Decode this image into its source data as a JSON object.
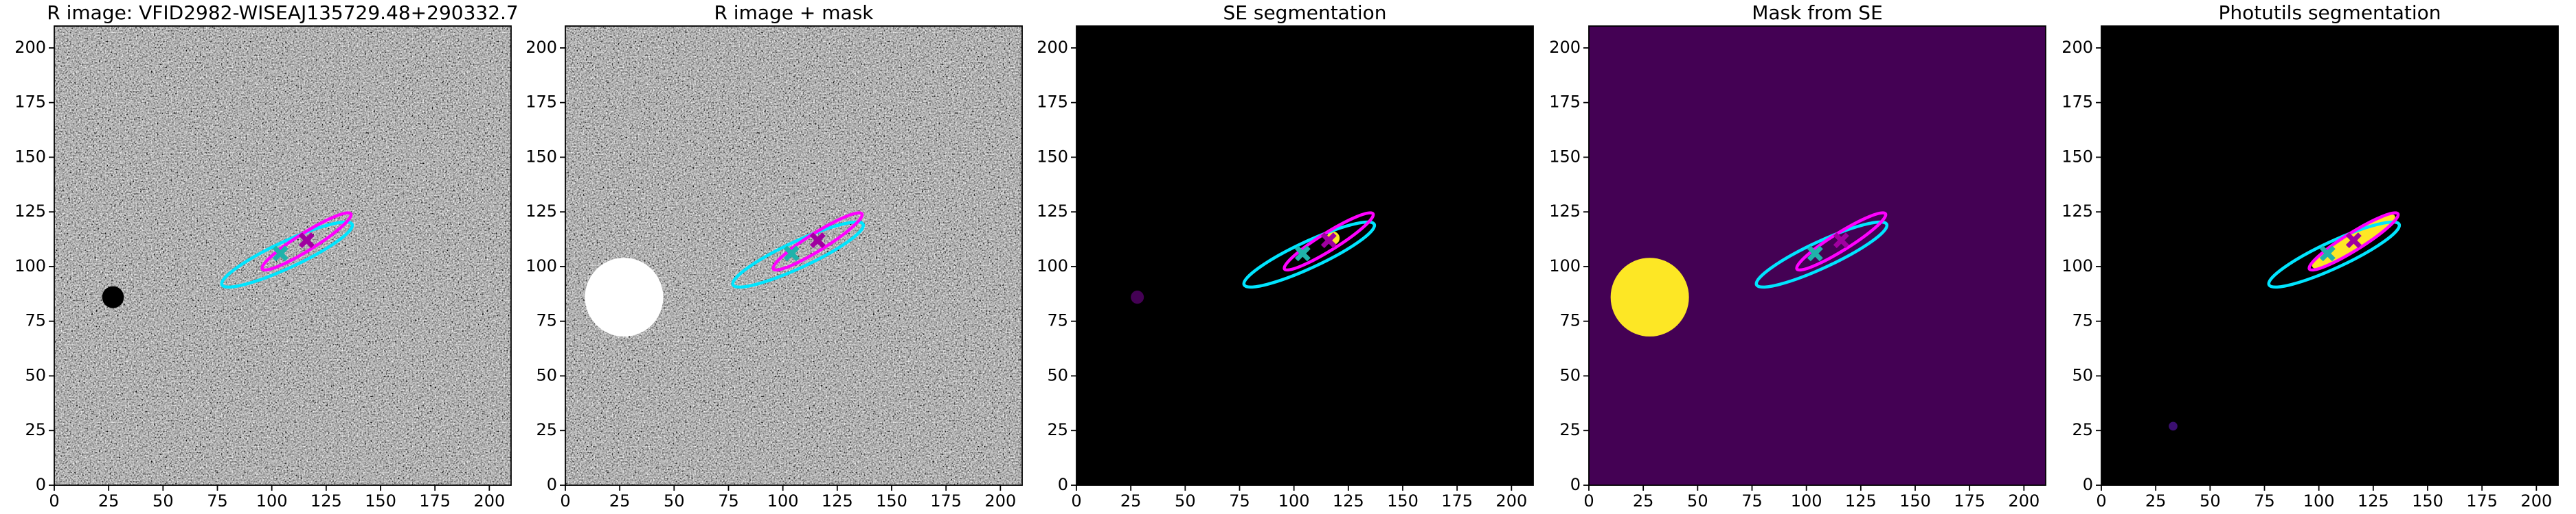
{
  "chart_data": [
    {
      "type": "image",
      "title": "R image: VFID2982-WISEAJ135729.48+290332.7",
      "background": "noise",
      "xlim": [
        0,
        210
      ],
      "ylim": [
        0,
        210
      ],
      "xticks": [
        0,
        25,
        50,
        75,
        100,
        125,
        150,
        175,
        200
      ],
      "yticks": [
        0,
        25,
        50,
        75,
        100,
        125,
        150,
        175,
        200
      ],
      "blobs": [
        {
          "color": "#000000",
          "x": 27,
          "y": 86,
          "r": 5
        }
      ],
      "ellipses": [
        {
          "color": "#00e5ff",
          "x": 107,
          "y": 105.5,
          "a": 33,
          "b": 6,
          "angle": 25
        },
        {
          "color": "#ff00ff",
          "x": 116,
          "y": 111.5,
          "a": 24,
          "b": 4,
          "angle": 32
        }
      ],
      "markers": [
        {
          "color": "#20b2aa",
          "x": 104,
          "y": 106
        },
        {
          "color": "#a000a0",
          "x": 116,
          "y": 112
        }
      ]
    },
    {
      "type": "image",
      "title": "R image + mask",
      "background": "noise",
      "xlim": [
        0,
        210
      ],
      "ylim": [
        0,
        210
      ],
      "xticks": [
        0,
        25,
        50,
        75,
        100,
        125,
        150,
        175,
        200
      ],
      "yticks": [
        0,
        25,
        50,
        75,
        100,
        125,
        150,
        175,
        200
      ],
      "blobs": [
        {
          "color": "#ffffff",
          "x": 27,
          "y": 86,
          "r": 18
        }
      ],
      "ellipses": [
        {
          "color": "#00e5ff",
          "x": 107,
          "y": 105.5,
          "a": 33,
          "b": 6,
          "angle": 25
        },
        {
          "color": "#ff00ff",
          "x": 116,
          "y": 111.5,
          "a": 24,
          "b": 4,
          "angle": 32
        }
      ],
      "markers": [
        {
          "color": "#20b2aa",
          "x": 104,
          "y": 106
        },
        {
          "color": "#a000a0",
          "x": 116,
          "y": 112
        }
      ]
    },
    {
      "type": "image",
      "title": "SE segmentation",
      "background": "#000000",
      "xlim": [
        0,
        210
      ],
      "ylim": [
        0,
        210
      ],
      "xticks": [
        0,
        25,
        50,
        75,
        100,
        125,
        150,
        175,
        200
      ],
      "yticks": [
        0,
        25,
        50,
        75,
        100,
        125,
        150,
        175,
        200
      ],
      "blobs": [
        {
          "color": "#440154",
          "x": 28,
          "y": 86,
          "r": 3
        },
        {
          "color": "#fde725",
          "x": 118,
          "y": 113,
          "r": 3
        }
      ],
      "ellipses": [
        {
          "color": "#00e5ff",
          "x": 107,
          "y": 105.5,
          "a": 33,
          "b": 6,
          "angle": 25
        },
        {
          "color": "#ff00ff",
          "x": 116,
          "y": 111.5,
          "a": 24,
          "b": 4,
          "angle": 32
        }
      ],
      "markers": [
        {
          "color": "#20b2aa",
          "x": 104,
          "y": 106
        },
        {
          "color": "#a000a0",
          "x": 116,
          "y": 112
        }
      ]
    },
    {
      "type": "image",
      "title": "Mask from SE",
      "background": "#440154",
      "xlim": [
        0,
        210
      ],
      "ylim": [
        0,
        210
      ],
      "xticks": [
        0,
        25,
        50,
        75,
        100,
        125,
        150,
        175,
        200
      ],
      "yticks": [
        0,
        25,
        50,
        75,
        100,
        125,
        150,
        175,
        200
      ],
      "blobs": [
        {
          "color": "#fde725",
          "x": 28,
          "y": 86,
          "r": 18
        }
      ],
      "ellipses": [
        {
          "color": "#00e5ff",
          "x": 107,
          "y": 105.5,
          "a": 33,
          "b": 6,
          "angle": 25
        },
        {
          "color": "#ff00ff",
          "x": 116,
          "y": 111.5,
          "a": 24,
          "b": 4,
          "angle": 32
        }
      ],
      "markers": [
        {
          "color": "#20b2aa",
          "x": 104,
          "y": 106
        },
        {
          "color": "#a000a0",
          "x": 116,
          "y": 112
        }
      ]
    },
    {
      "type": "image",
      "title": "Photutils segmentation",
      "background": "#000000",
      "xlim": [
        0,
        210
      ],
      "ylim": [
        0,
        210
      ],
      "xticks": [
        0,
        25,
        50,
        75,
        100,
        125,
        150,
        175,
        200
      ],
      "yticks": [
        0,
        25,
        50,
        75,
        100,
        125,
        150,
        175,
        200
      ],
      "blobs": [
        {
          "color": "#3b0f70",
          "x": 33,
          "y": 27,
          "r": 2
        }
      ],
      "ellipses": [
        {
          "color": "#fde725",
          "x": 116,
          "y": 111.5,
          "a": 22,
          "b": 4,
          "angle": 32,
          "fill": true
        },
        {
          "color": "#00e5ff",
          "x": 107,
          "y": 105.5,
          "a": 33,
          "b": 6,
          "angle": 25
        },
        {
          "color": "#ff00ff",
          "x": 116,
          "y": 111.5,
          "a": 24,
          "b": 4,
          "angle": 32
        }
      ],
      "markers": [
        {
          "color": "#20b2aa",
          "x": 104,
          "y": 106
        },
        {
          "color": "#a000a0",
          "x": 116,
          "y": 112
        }
      ]
    }
  ]
}
